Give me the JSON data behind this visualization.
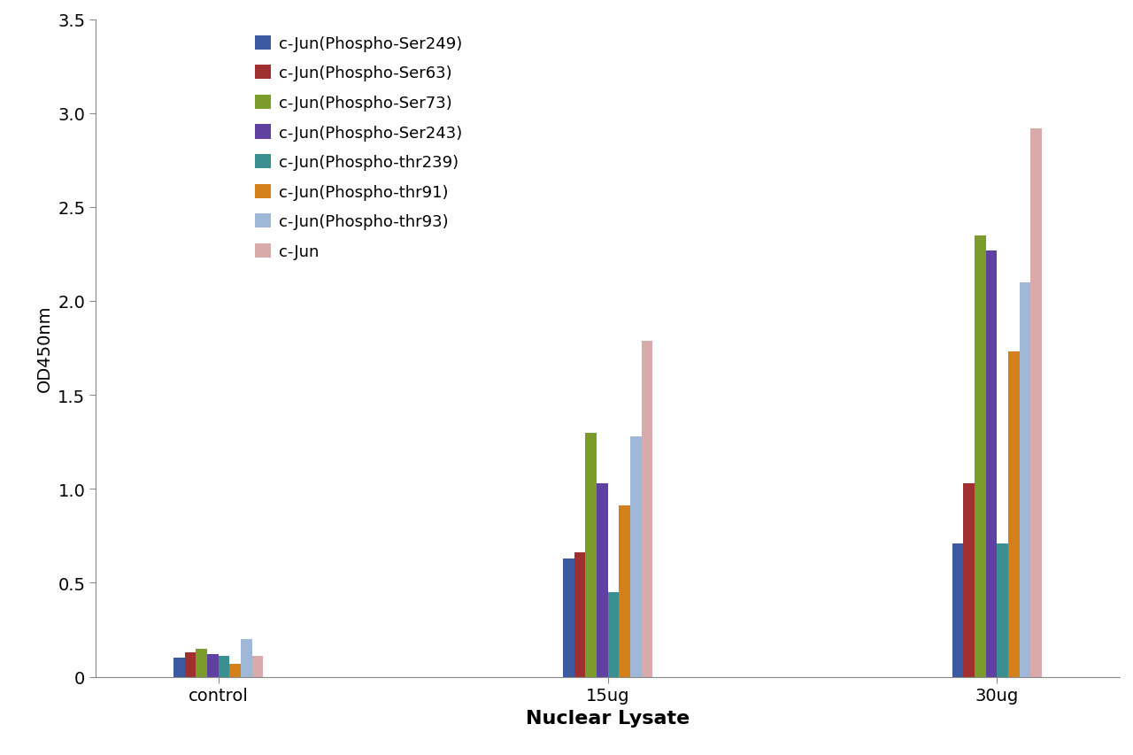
{
  "categories": [
    "control",
    "15ug",
    "30ug"
  ],
  "series": [
    {
      "label": "c-Jun(Phospho-Ser249)",
      "color": "#3B5AA0",
      "values": [
        0.1,
        0.63,
        0.71
      ]
    },
    {
      "label": "c-Jun(Phospho-Ser63)",
      "color": "#A03030",
      "values": [
        0.13,
        0.66,
        1.03
      ]
    },
    {
      "label": "c-Jun(Phospho-Ser73)",
      "color": "#7B9C2A",
      "values": [
        0.15,
        1.3,
        2.35
      ]
    },
    {
      "label": "c-Jun(Phospho-Ser243)",
      "color": "#6040A0",
      "values": [
        0.12,
        1.03,
        2.27
      ]
    },
    {
      "label": "c-Jun(Phospho-thr239)",
      "color": "#3A9090",
      "values": [
        0.11,
        0.45,
        0.71
      ]
    },
    {
      "label": "c-Jun(Phospho-thr91)",
      "color": "#D4801A",
      "values": [
        0.07,
        0.91,
        1.73
      ]
    },
    {
      "label": "c-Jun(Phospho-thr93)",
      "color": "#A0B8D8",
      "values": [
        0.2,
        1.28,
        2.1
      ]
    },
    {
      "label": "c-Jun",
      "color": "#D8AAAA",
      "values": [
        0.11,
        1.79,
        2.92
      ]
    }
  ],
  "xlabel": "Nuclear Lysate",
  "ylabel": "OD450nm",
  "ylim": [
    0,
    3.5
  ],
  "yticks": [
    0,
    0.5,
    1.0,
    1.5,
    2.0,
    2.5,
    3.0,
    3.5
  ],
  "background_color": "#ffffff",
  "xlabel_fontsize": 16,
  "ylabel_fontsize": 14,
  "tick_fontsize": 14,
  "legend_fontsize": 13
}
